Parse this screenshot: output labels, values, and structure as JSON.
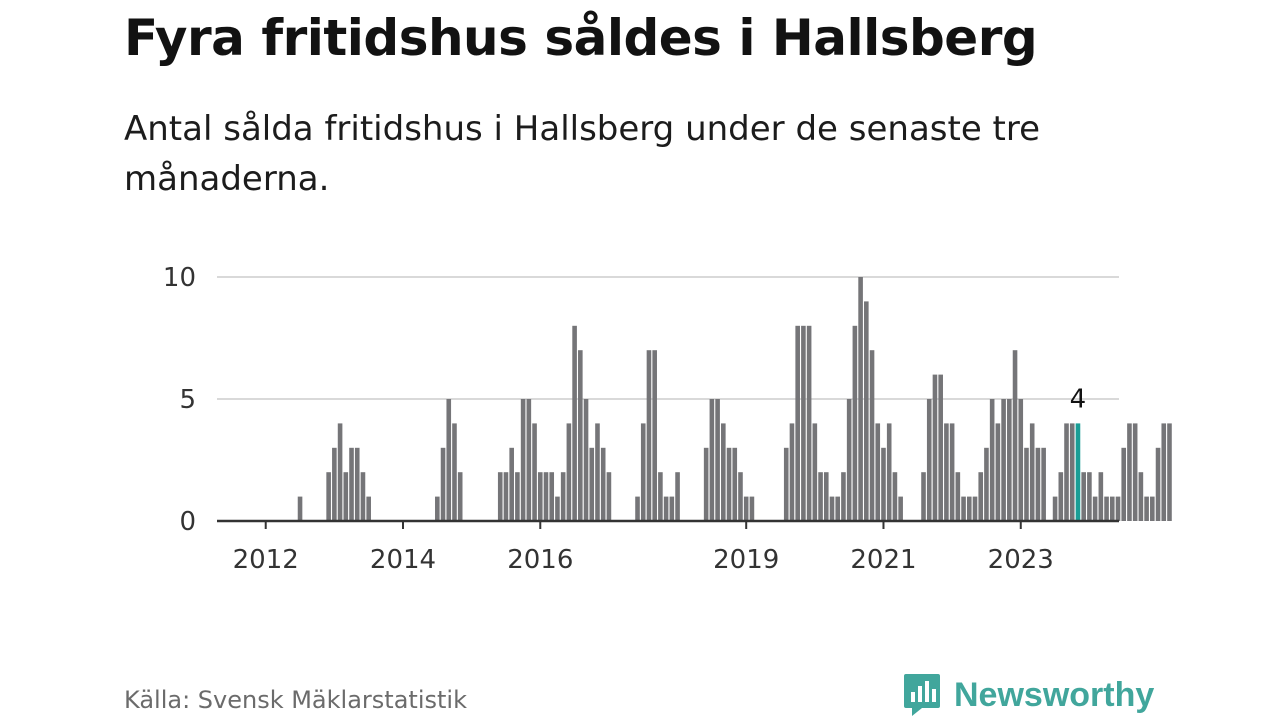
{
  "title": "Fyra fritidshus såldes i Hallsberg",
  "subtitle": "Antal sålda fritidshus i Hallsberg under de senaste tre månaderna.",
  "source": "Källa: Svensk Mäklarstatistik",
  "brand": {
    "name": "Newsworthy",
    "icon": "newsworthy-logo-icon",
    "color": "#41a69c"
  },
  "colors": {
    "bar": "#757578",
    "highlight": "#1a9e96",
    "grid": "#d9d9d9",
    "axis": "#333333"
  },
  "chart_data": {
    "type": "bar",
    "title": "Fyra fritidshus såldes i Hallsberg",
    "subtitle": "Antal sålda fritidshus i Hallsberg under de senaste tre månaderna.",
    "xlabel": "",
    "ylabel": "",
    "ylim": [
      0,
      10
    ],
    "yticks": [
      0,
      5,
      10
    ],
    "xticks": [
      "2012",
      "2014",
      "2016",
      "2019",
      "2021",
      "2023"
    ],
    "grid": true,
    "highlight_label": "4",
    "highlight_index": 143,
    "series": [
      {
        "values": [
          0,
          0,
          0,
          0,
          0,
          0,
          0,
          1,
          0,
          0,
          0,
          0,
          2,
          3,
          4,
          2,
          3,
          3,
          2,
          1,
          0,
          0,
          0,
          0,
          0,
          0,
          0,
          0,
          0,
          0,
          0,
          1,
          3,
          5,
          4,
          2,
          0,
          0,
          0,
          0,
          0,
          0,
          2,
          2,
          3,
          2,
          5,
          5,
          4,
          2,
          2,
          2,
          1,
          2,
          4,
          8,
          7,
          5,
          3,
          4,
          3,
          2,
          0,
          0,
          0,
          0,
          1,
          4,
          7,
          7,
          2,
          1,
          1,
          2,
          0,
          0,
          0,
          0,
          3,
          5,
          5,
          4,
          3,
          3,
          2,
          1,
          1,
          0,
          0,
          0,
          0,
          0,
          3,
          4,
          8,
          8,
          8,
          4,
          2,
          2,
          1,
          1,
          2,
          5,
          8,
          10,
          9,
          7,
          4,
          3,
          4,
          2,
          1,
          0,
          0,
          0,
          2,
          5,
          6,
          6,
          4,
          4,
          2,
          1,
          1,
          1,
          2,
          3,
          5,
          4,
          5,
          5,
          7,
          5,
          3,
          4,
          3,
          3,
          0,
          1,
          2,
          4,
          4,
          4,
          2,
          2,
          1,
          2,
          1,
          1,
          1,
          3,
          4,
          4,
          2,
          1,
          1,
          3,
          4,
          4
        ]
      }
    ]
  }
}
